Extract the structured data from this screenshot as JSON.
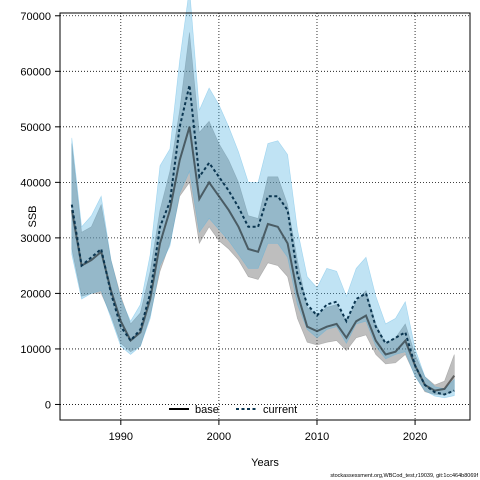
{
  "chart_data": {
    "type": "line",
    "xlabel": "Years",
    "ylabel": "SSB",
    "xlim": [
      1983.8,
      2025.6
    ],
    "ylim": [
      -2800,
      70500
    ],
    "xticks": [
      1990,
      2000,
      2010,
      2020
    ],
    "yticks": [
      0,
      10000,
      20000,
      30000,
      40000,
      50000,
      60000,
      70000
    ],
    "grid": "dotted",
    "legend_position": "bottom-center",
    "footer": "stockassessment.org,WBCod_test,r19039, git:1cc464b8069f",
    "colors": {
      "base_line": "#000000",
      "base_band": "#6e6e6e",
      "current_line": "#0a3550",
      "current_band": "#4ab0e0"
    },
    "series": [
      {
        "name": "base",
        "x": [
          1985,
          1986,
          1987,
          1988,
          1989,
          1990,
          1991,
          1992,
          1993,
          1994,
          1995,
          1996,
          1997,
          1998,
          1999,
          2000,
          2001,
          2002,
          2003,
          2004,
          2005,
          2006,
          2007,
          2008,
          2009,
          2010,
          2011,
          2012,
          2013,
          2014,
          2015,
          2016,
          2017,
          2018,
          2019,
          2020,
          2021,
          2022,
          2023,
          2024
        ],
        "values": [
          35000,
          25000,
          26000,
          27500,
          20500,
          15000,
          11500,
          13000,
          19000,
          29000,
          35000,
          44000,
          50000,
          37000,
          40000,
          37500,
          35000,
          32000,
          28000,
          27500,
          32500,
          32000,
          29000,
          20000,
          14000,
          13200,
          14000,
          14500,
          12000,
          15000,
          16000,
          11500,
          9000,
          9500,
          11500,
          7000,
          3500,
          2500,
          2800,
          5200
        ],
        "lower": [
          28000,
          19500,
          20000,
          20000,
          16000,
          11000,
          9500,
          10500,
          16000,
          24000,
          29000,
          37500,
          40000,
          29000,
          32000,
          29500,
          28000,
          26000,
          23000,
          22500,
          25500,
          25000,
          23000,
          15500,
          11200,
          10700,
          11200,
          11500,
          9700,
          12000,
          12500,
          9000,
          7300,
          7500,
          9000,
          5200,
          2300,
          1800,
          1700,
          2500
        ],
        "upper": [
          47000,
          31000,
          32000,
          36000,
          26000,
          19500,
          14500,
          16500,
          24000,
          35000,
          42000,
          53000,
          67000,
          49000,
          51000,
          47000,
          44000,
          40000,
          34000,
          33500,
          41000,
          41000,
          36000,
          26000,
          17500,
          16000,
          17500,
          18000,
          15000,
          18500,
          20500,
          14500,
          11000,
          12000,
          14500,
          9000,
          5000,
          3500,
          4200,
          9000
        ]
      },
      {
        "name": "current",
        "x": [
          1985,
          1986,
          1987,
          1988,
          1989,
          1990,
          1991,
          1992,
          1993,
          1994,
          1995,
          1996,
          1997,
          1998,
          1999,
          2000,
          2001,
          2002,
          2003,
          2004,
          2005,
          2006,
          2007,
          2008,
          2009,
          2010,
          2011,
          2012,
          2013,
          2014,
          2015,
          2016,
          2017,
          2018,
          2019,
          2020,
          2021,
          2022,
          2023,
          2024
        ],
        "values": [
          36000,
          25000,
          26500,
          28000,
          20000,
          14000,
          11500,
          13500,
          20000,
          32000,
          36500,
          50000,
          57500,
          41000,
          43500,
          41000,
          38500,
          35500,
          32000,
          32000,
          37500,
          37500,
          35000,
          23500,
          18000,
          16000,
          18000,
          18500,
          15000,
          19000,
          20000,
          14000,
          11000,
          12000,
          13000,
          7000,
          3500,
          2200,
          1800,
          2500
        ],
        "lower": [
          27000,
          19000,
          20000,
          20500,
          15500,
          10500,
          9000,
          10500,
          15500,
          25000,
          28500,
          38000,
          42000,
          31000,
          33500,
          31500,
          29500,
          27000,
          24500,
          24500,
          29000,
          29000,
          26500,
          18000,
          13500,
          12000,
          13500,
          14000,
          11000,
          14500,
          15000,
          10500,
          8200,
          9000,
          9500,
          5000,
          2500,
          1500,
          1200,
          1600
        ],
        "upper": [
          48000,
          32000,
          34000,
          37500,
          26000,
          19000,
          15000,
          18000,
          27000,
          43000,
          46000,
          62000,
          75000,
          53000,
          57000,
          54000,
          50000,
          45500,
          40000,
          40000,
          47000,
          47500,
          45000,
          31500,
          23000,
          21000,
          24500,
          24000,
          19500,
          24500,
          26500,
          19500,
          14500,
          15500,
          18500,
          10000,
          5000,
          3200,
          2800,
          4500
        ]
      }
    ]
  }
}
